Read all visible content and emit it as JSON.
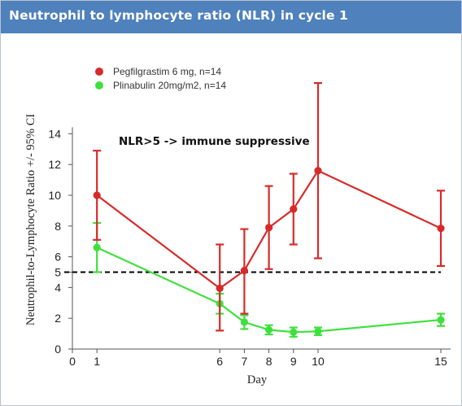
{
  "header": {
    "title": "Neutrophil to lymphocyte ratio (NLR) in cycle 1"
  },
  "chart_data": {
    "type": "line",
    "title": "Neutrophil to lymphocyte ratio (NLR) in cycle 1",
    "xlabel": "Day",
    "ylabel": "Neutrophil-to-Lymphocyte Ratio  +/- 95% CI",
    "xlim": [
      0,
      15
    ],
    "ylim": [
      0,
      14
    ],
    "x_ticks": [
      0,
      1,
      6,
      7,
      8,
      9,
      10,
      15
    ],
    "y_ticks": [
      0,
      2,
      4,
      5,
      6,
      8,
      10,
      12,
      14
    ],
    "grid": false,
    "legend_position": "top-left",
    "series": [
      {
        "name": "Pegfilgrastim 6 mg, n=14",
        "color": "#d62b2b",
        "points": [
          {
            "x": 1,
            "y": 10.0,
            "lo": 7.1,
            "hi": 12.9
          },
          {
            "x": 6,
            "y": 3.95,
            "lo": 1.2,
            "hi": 6.8
          },
          {
            "x": 7,
            "y": 5.1,
            "lo": 2.3,
            "hi": 7.8
          },
          {
            "x": 8,
            "y": 7.9,
            "lo": 5.2,
            "hi": 10.6
          },
          {
            "x": 9,
            "y": 9.1,
            "lo": 6.8,
            "hi": 11.4
          },
          {
            "x": 10,
            "y": 11.6,
            "lo": 5.9,
            "hi": 17.3
          },
          {
            "x": 15,
            "y": 7.85,
            "lo": 5.4,
            "hi": 10.3
          }
        ]
      },
      {
        "name": "Plinabulin 20mg/m2, n=14",
        "color": "#3ee03e",
        "points": [
          {
            "x": 1,
            "y": 6.6,
            "lo": 5.0,
            "hi": 8.2
          },
          {
            "x": 6,
            "y": 2.95,
            "lo": 2.3,
            "hi": 3.6
          },
          {
            "x": 7,
            "y": 1.75,
            "lo": 1.3,
            "hi": 2.2
          },
          {
            "x": 8,
            "y": 1.25,
            "lo": 0.95,
            "hi": 1.55
          },
          {
            "x": 9,
            "y": 1.1,
            "lo": 0.8,
            "hi": 1.4
          },
          {
            "x": 10,
            "y": 1.15,
            "lo": 0.9,
            "hi": 1.4
          },
          {
            "x": 15,
            "y": 1.9,
            "lo": 1.5,
            "hi": 2.3
          }
        ]
      }
    ],
    "reference_line": {
      "y": 5,
      "style": "dashed",
      "color": "#000000"
    },
    "annotations": [
      {
        "text": "NLR>5 -> immune suppressive"
      }
    ]
  }
}
